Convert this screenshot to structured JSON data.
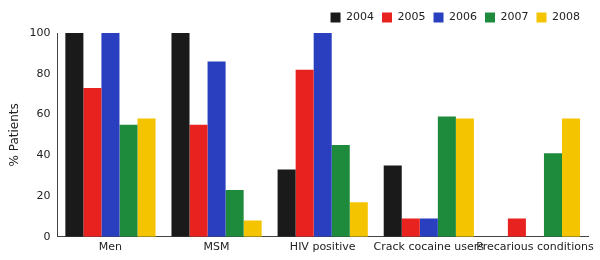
{
  "chart_data": {
    "type": "bar",
    "y_label": "% Patients",
    "categories": [
      "Men",
      "MSM",
      "HIV positive",
      "Crack cocaine users",
      "Precarious conditions"
    ],
    "series": [
      {
        "name": "2004",
        "color": "#1a1a1a",
        "values": [
          100,
          100,
          33,
          35,
          0
        ]
      },
      {
        "name": "2005",
        "color": "#e8231f",
        "values": [
          73,
          55,
          82,
          9,
          9
        ]
      },
      {
        "name": "2006",
        "color": "#2a3fbf",
        "values": [
          100,
          86,
          100,
          9,
          0
        ]
      },
      {
        "name": "2007",
        "color": "#1e8a3c",
        "values": [
          55,
          23,
          45,
          59,
          41
        ]
      },
      {
        "name": "2008",
        "color": "#f5c400",
        "values": [
          58,
          8,
          17,
          58,
          58
        ]
      }
    ],
    "ylim": [
      0,
      100
    ],
    "yticks": [
      0,
      20,
      40,
      60,
      80,
      100
    ],
    "grid": false,
    "legend": "top-right"
  }
}
